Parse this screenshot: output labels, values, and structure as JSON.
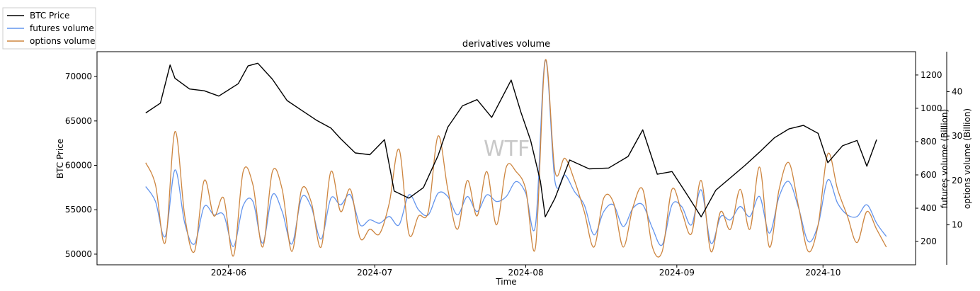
{
  "chart_data": {
    "type": "line",
    "title": "derivatives volume",
    "xlabel": "Time",
    "watermark": "WTF",
    "x_ticks": [
      "2024-06",
      "2024-07",
      "2024-08",
      "2024-09",
      "2024-10"
    ],
    "axes": {
      "left": {
        "label": "BTC Price",
        "ylim": [
          48800,
          72800
        ],
        "ticks": [
          50000,
          55000,
          60000,
          65000,
          70000
        ]
      },
      "right1": {
        "label": "futures volume (Billion)",
        "ylim": [
          60,
          1340
        ],
        "ticks": [
          200,
          400,
          600,
          800,
          1000,
          1200
        ]
      },
      "right2": {
        "label": "options volume (Billion)",
        "ylim": [
          1,
          49
        ],
        "ticks": [
          10,
          20,
          30,
          40
        ]
      }
    },
    "legend": {
      "placement": "top-left, outside"
    },
    "series": [
      {
        "name": "BTC Price",
        "axis": "left",
        "color": "#000000",
        "x": [
          "2024-05-15",
          "2024-05-18",
          "2024-05-20",
          "2024-05-21",
          "2024-05-24",
          "2024-05-27",
          "2024-05-30",
          "2024-06-03",
          "2024-06-05",
          "2024-06-07",
          "2024-06-10",
          "2024-06-13",
          "2024-06-16",
          "2024-06-19",
          "2024-06-22",
          "2024-06-24",
          "2024-06-27",
          "2024-06-30",
          "2024-07-03",
          "2024-07-05",
          "2024-07-08",
          "2024-07-11",
          "2024-07-14",
          "2024-07-16",
          "2024-07-19",
          "2024-07-22",
          "2024-07-25",
          "2024-07-29",
          "2024-07-31",
          "2024-08-02",
          "2024-08-04",
          "2024-08-05",
          "2024-08-07",
          "2024-08-10",
          "2024-08-14",
          "2024-08-18",
          "2024-08-22",
          "2024-08-25",
          "2024-08-28",
          "2024-08-31",
          "2024-09-03",
          "2024-09-06",
          "2024-09-09",
          "2024-09-12",
          "2024-09-15",
          "2024-09-18",
          "2024-09-21",
          "2024-09-24",
          "2024-09-27",
          "2024-09-30",
          "2024-10-02",
          "2024-10-05",
          "2024-10-08",
          "2024-10-10",
          "2024-10-12"
        ],
        "values": [
          65900,
          67000,
          71300,
          69800,
          68600,
          68400,
          67800,
          69200,
          71200,
          71500,
          69700,
          67300,
          66200,
          65100,
          64200,
          63000,
          61400,
          61200,
          62900,
          57100,
          56300,
          57500,
          61100,
          64300,
          66700,
          67400,
          65400,
          69600,
          66000,
          62800,
          58200,
          54200,
          56300,
          60600,
          59600,
          59700,
          61000,
          64000,
          59000,
          59300,
          56800,
          54200,
          57200,
          58600,
          60000,
          61500,
          63100,
          64100,
          64500,
          63600,
          60300,
          62200,
          62800,
          59900,
          62900
        ]
      },
      {
        "name": "futures volume",
        "axis": "right1",
        "color": "#6495ed",
        "x": [
          "2024-05-15",
          "2024-05-17",
          "2024-05-19",
          "2024-05-21",
          "2024-05-23",
          "2024-05-25",
          "2024-05-27",
          "2024-05-29",
          "2024-05-31",
          "2024-06-02",
          "2024-06-04",
          "2024-06-06",
          "2024-06-08",
          "2024-06-10",
          "2024-06-12",
          "2024-06-14",
          "2024-06-16",
          "2024-06-18",
          "2024-06-20",
          "2024-06-22",
          "2024-06-24",
          "2024-06-26",
          "2024-06-28",
          "2024-06-30",
          "2024-07-02",
          "2024-07-04",
          "2024-07-06",
          "2024-07-08",
          "2024-07-10",
          "2024-07-12",
          "2024-07-14",
          "2024-07-16",
          "2024-07-18",
          "2024-07-20",
          "2024-07-22",
          "2024-07-24",
          "2024-07-26",
          "2024-07-28",
          "2024-07-30",
          "2024-08-01",
          "2024-08-03",
          "2024-08-05",
          "2024-08-07",
          "2024-08-09",
          "2024-08-11",
          "2024-08-13",
          "2024-08-15",
          "2024-08-17",
          "2024-08-19",
          "2024-08-21",
          "2024-08-23",
          "2024-08-25",
          "2024-08-27",
          "2024-08-29",
          "2024-08-31",
          "2024-09-02",
          "2024-09-04",
          "2024-09-06",
          "2024-09-08",
          "2024-09-10",
          "2024-09-12",
          "2024-09-14",
          "2024-09-16",
          "2024-09-18",
          "2024-09-20",
          "2024-09-22",
          "2024-09-24",
          "2024-09-26",
          "2024-09-28",
          "2024-09-30",
          "2024-10-02",
          "2024-10-04",
          "2024-10-06",
          "2024-10-08",
          "2024-10-10",
          "2024-10-12",
          "2024-10-14"
        ],
        "values": [
          530,
          440,
          230,
          630,
          310,
          185,
          410,
          360,
          360,
          170,
          415,
          440,
          190,
          480,
          380,
          185,
          465,
          405,
          215,
          460,
          420,
          480,
          300,
          330,
          310,
          350,
          300,
          480,
          390,
          360,
          490,
          470,
          360,
          470,
          380,
          480,
          440,
          470,
          560,
          490,
          300,
          1290,
          560,
          600,
          500,
          420,
          240,
          380,
          420,
          290,
          400,
          420,
          280,
          180,
          420,
          410,
          300,
          510,
          190,
          350,
          330,
          410,
          350,
          470,
          250,
          470,
          560,
          400,
          200,
          300,
          570,
          430,
          360,
          350,
          420,
          310,
          230
        ]
      },
      {
        "name": "options volume",
        "axis": "right2",
        "color": "#cd853f",
        "x": [
          "2024-05-15",
          "2024-05-17",
          "2024-05-19",
          "2024-05-21",
          "2024-05-23",
          "2024-05-25",
          "2024-05-27",
          "2024-05-29",
          "2024-05-31",
          "2024-06-02",
          "2024-06-04",
          "2024-06-06",
          "2024-06-08",
          "2024-06-10",
          "2024-06-12",
          "2024-06-14",
          "2024-06-16",
          "2024-06-18",
          "2024-06-20",
          "2024-06-22",
          "2024-06-24",
          "2024-06-26",
          "2024-06-28",
          "2024-06-30",
          "2024-07-02",
          "2024-07-04",
          "2024-07-06",
          "2024-07-08",
          "2024-07-10",
          "2024-07-12",
          "2024-07-14",
          "2024-07-16",
          "2024-07-18",
          "2024-07-20",
          "2024-07-22",
          "2024-07-24",
          "2024-07-26",
          "2024-07-28",
          "2024-07-30",
          "2024-08-01",
          "2024-08-03",
          "2024-08-05",
          "2024-08-07",
          "2024-08-09",
          "2024-08-11",
          "2024-08-13",
          "2024-08-15",
          "2024-08-17",
          "2024-08-19",
          "2024-08-21",
          "2024-08-23",
          "2024-08-25",
          "2024-08-27",
          "2024-08-29",
          "2024-08-31",
          "2024-09-02",
          "2024-09-04",
          "2024-09-06",
          "2024-09-08",
          "2024-09-10",
          "2024-09-12",
          "2024-09-14",
          "2024-09-16",
          "2024-09-18",
          "2024-09-20",
          "2024-09-22",
          "2024-09-24",
          "2024-09-26",
          "2024-09-28",
          "2024-09-30",
          "2024-10-02",
          "2024-10-04",
          "2024-10-06",
          "2024-10-08",
          "2024-10-10",
          "2024-10-12",
          "2024-10-14"
        ],
        "values": [
          24,
          19,
          6,
          31,
          12,
          4,
          20,
          12,
          16,
          3,
          22,
          19,
          5,
          22,
          18,
          4,
          18,
          15,
          5,
          22,
          13,
          18,
          7,
          9,
          8,
          15,
          27,
          8,
          12,
          13,
          30,
          18,
          9,
          20,
          12,
          22,
          10,
          23,
          22,
          18,
          5,
          47,
          22,
          25,
          20,
          13,
          5,
          16,
          15,
          5,
          14,
          18,
          5,
          4,
          18,
          13,
          8,
          20,
          4,
          13,
          9,
          18,
          9,
          23,
          5,
          18,
          24,
          14,
          4,
          10,
          26,
          18,
          12,
          6,
          13,
          9,
          5
        ]
      }
    ]
  }
}
